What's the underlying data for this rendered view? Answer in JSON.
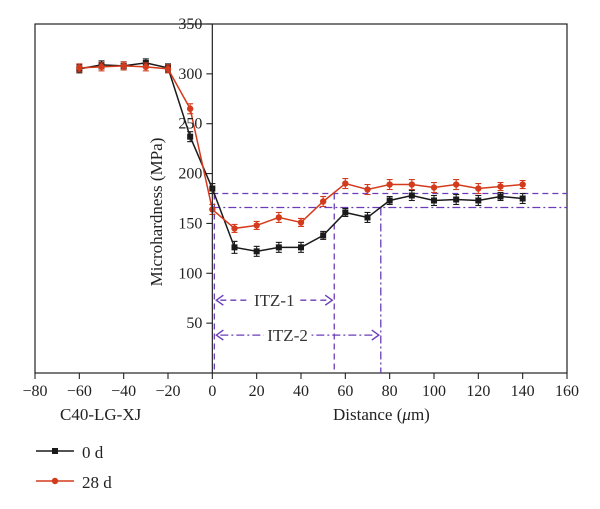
{
  "chart_data": {
    "type": "line",
    "xlabel_prefix": "Distance (",
    "xlabel_unit": "μ",
    "xlabel_suffix": "m)",
    "ylabel": "Microhardness (MPa)",
    "sample_label": "C40-LG-XJ",
    "xlim": [
      -80,
      160
    ],
    "ylim": [
      0,
      350
    ],
    "xticks": [
      -80,
      -60,
      -40,
      -20,
      0,
      20,
      40,
      60,
      80,
      100,
      120,
      140,
      160
    ],
    "yticks": [
      50,
      100,
      150,
      200,
      250,
      300,
      350
    ],
    "grid": false,
    "legend_position": "bottom-left",
    "series": [
      {
        "name": "0 d",
        "color": "#1a1a1a",
        "marker": "square",
        "x": [
          -60,
          -50,
          -40,
          -30,
          -20,
          -10,
          0,
          10,
          20,
          30,
          40,
          50,
          60,
          70,
          80,
          90,
          100,
          110,
          120,
          130,
          140
        ],
        "y": [
          305,
          309,
          308,
          311,
          306,
          237,
          185,
          126,
          122,
          126,
          126,
          138,
          161,
          156,
          173,
          178,
          173,
          174,
          173,
          177,
          175
        ],
        "err": [
          4,
          4,
          4,
          4,
          4,
          5,
          5,
          6,
          5,
          5,
          5,
          4,
          4,
          5,
          4,
          5,
          5,
          5,
          5,
          4,
          5
        ]
      },
      {
        "name": "28 d",
        "color": "#d43a1c",
        "marker": "circle",
        "x": [
          -60,
          -50,
          -40,
          -30,
          -20,
          -10,
          0,
          10,
          20,
          30,
          40,
          50,
          60,
          70,
          80,
          90,
          100,
          110,
          120,
          130,
          140
        ],
        "y": [
          306,
          307,
          308,
          307,
          305,
          265,
          164,
          145,
          148,
          156,
          151,
          172,
          190,
          184,
          189,
          189,
          186,
          189,
          185,
          187,
          189
        ],
        "err": [
          4,
          4,
          4,
          4,
          4,
          5,
          5,
          4,
          4,
          5,
          4,
          5,
          5,
          5,
          5,
          5,
          5,
          5,
          5,
          4,
          4
        ]
      }
    ],
    "annotations": {
      "itz1_label": "ITZ-1",
      "itz1_range": [
        0,
        55
      ],
      "itz1_level": 180,
      "itz2_label": "ITZ-2",
      "itz2_range": [
        0,
        76
      ],
      "itz2_level": 166,
      "itz_guide_end_x": 160,
      "itz1_arrow_y": 73,
      "itz2_arrow_y": 38,
      "label_color": "#6a3db8"
    }
  }
}
